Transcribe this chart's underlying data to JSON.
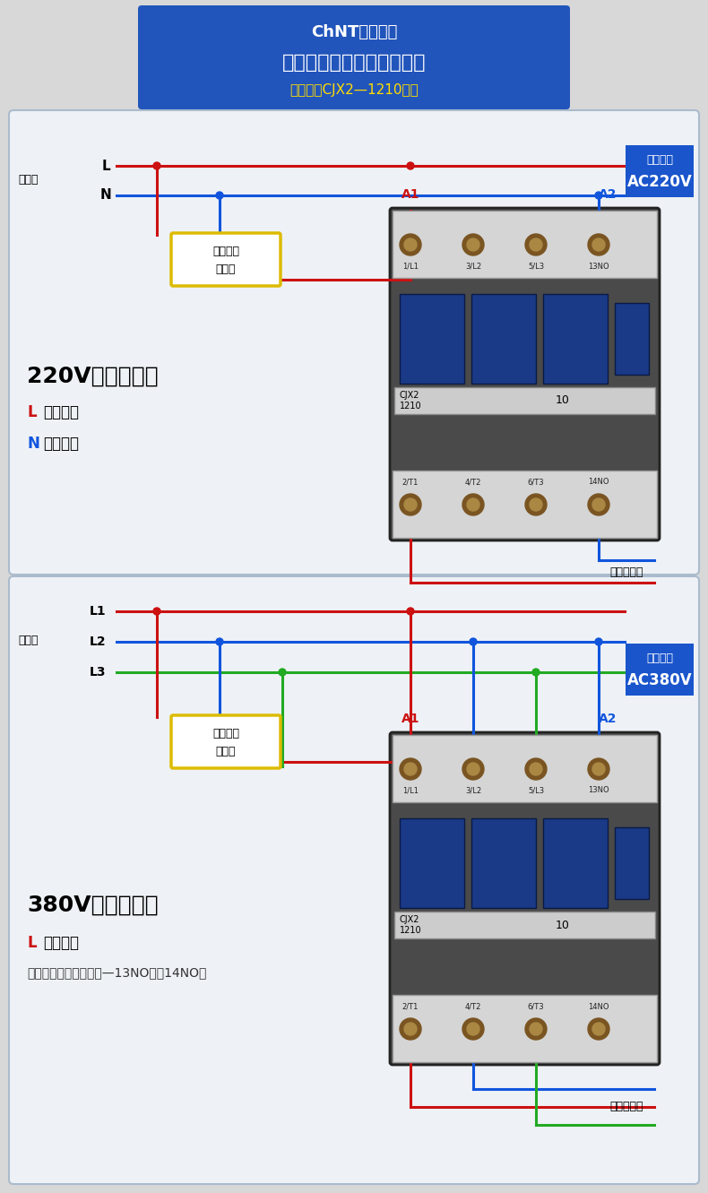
{
  "bg_color": "#d8d8d8",
  "panel1_bg": "#eef2f6",
  "panel2_bg": "#eef2f6",
  "panel_border": "#b0c0d0",
  "title_bg": "#2255bb",
  "title_text1": "ChNT正泰电工",
  "title_text2": "交流接触器常见接线示意图",
  "title_sub": "产品图以CJX2—1210为例",
  "title_text_color": "#ffffff",
  "title_sub_color": "#ffdd00",
  "red": "#cc1111",
  "blue": "#1155dd",
  "green": "#22aa22",
  "yellow_box_bg": "#ffffff",
  "yellow_box_border": "#ddbb00",
  "blue_box_bg": "#1a55cc",
  "lw": 2.2,
  "dot_r": 4,
  "term_labels_top": [
    "1/L1",
    "3/L2",
    "5/L3",
    "13NO"
  ],
  "term_labels_bot": [
    "2/T1",
    "4/T2",
    "6/T3",
    "14NO"
  ],
  "label_220v": "220V接线示意图",
  "label_l_fire": "L代表火线",
  "label_n_zero": "N代表零线",
  "label_380v": "380V接线示意图",
  "label_l_fire2": "L代表火线",
  "label_note": "注：接触器如需接零线—13NO进，14NO出",
  "ctrl_text1": "控制元件",
  "ctrl_text2": "及开关",
  "coil_220_line1": "线圈电压",
  "coil_220_line2": "AC220V",
  "coil_380_line1": "线圈电压",
  "coil_380_line2": "AC380V",
  "output_text": "输出接负载",
  "dianYuanDuan": "电源端",
  "L_label": "L",
  "N_label": "N",
  "L1_label": "L1",
  "L2_label": "L2",
  "L3_label": "L3",
  "A1_label": "A1",
  "A2_label": "A2",
  "cjx2_label": "CJX2\n1210",
  "ten_label": "10"
}
